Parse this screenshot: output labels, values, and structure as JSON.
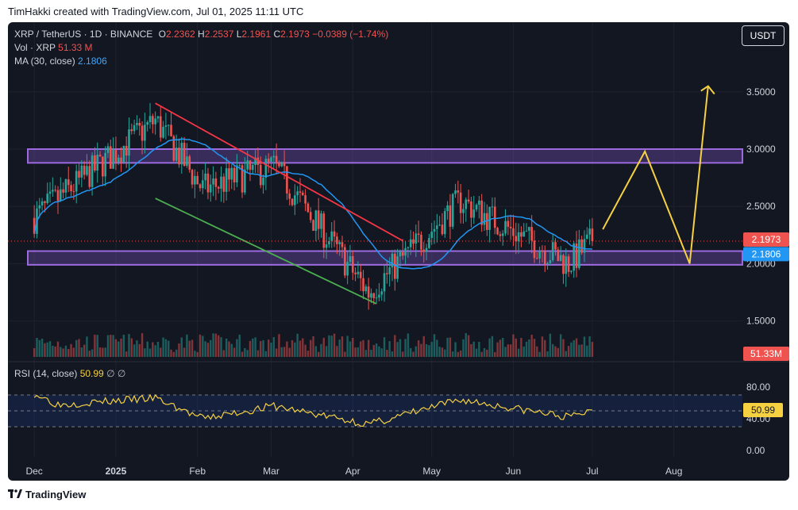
{
  "credit": "TimHakki created with TradingView.com, Jul 01, 2025 11:11 UTC",
  "legend": {
    "symbol": "XRP / TetherUS · 1D · BINANCE",
    "o_label": "O",
    "o": "2.2362",
    "h_label": "H",
    "h": "2.2537",
    "l_label": "L",
    "l": "2.1961",
    "c_label": "C",
    "c": "2.1973",
    "change": "−0.0389 (−1.74%)",
    "vol_label": "Vol · XRP",
    "vol": "51.33 M",
    "ma_label": "MA (30, close)",
    "ma": "2.1806",
    "rsi_label": "RSI (14, close)",
    "rsi": "50.99",
    "rsi_extra": "∅  ∅"
  },
  "currency_button": "USDT",
  "branding": "TradingView",
  "colors": {
    "background": "#131722",
    "up": "#26a69a",
    "down": "#ef5350",
    "ma": "#2196f3",
    "zone": "#7e57c2",
    "resistance_line": "#f23645",
    "support_line": "#4caf50",
    "projection": "#f5d142",
    "rsi": "#f5d142"
  },
  "chart_data": [
    {
      "type": "candlestick",
      "symbol": "XRP / TetherUS",
      "interval": "1D",
      "x_ticks": [
        "Dec",
        "2025",
        "Feb",
        "Mar",
        "Apr",
        "May",
        "Jun",
        "Jul",
        "Aug"
      ],
      "y_ticks": [
        "1.5000",
        "2.0000",
        "2.5000",
        "3.0000",
        "3.5000"
      ],
      "ylim": [
        1.2,
        3.9
      ],
      "price_labels": {
        "last": "2.1973",
        "ma": "2.1806",
        "volume": "51.33M"
      },
      "last_close": 2.1973,
      "ma_value": 2.1806,
      "zones": [
        {
          "name": "resistance-zone",
          "low": 2.88,
          "high": 3.0
        },
        {
          "name": "support-zone",
          "low": 1.99,
          "high": 2.11
        }
      ],
      "anchors": [
        {
          "date": "2024-12-01",
          "price": 2.4
        },
        {
          "date": "2025-01-16",
          "price": 3.25
        },
        {
          "date": "2025-02-03",
          "price": 2.65
        },
        {
          "date": "2025-03-02",
          "price": 2.85
        },
        {
          "date": "2025-04-07",
          "price": 1.75
        },
        {
          "date": "2025-05-12",
          "price": 2.55
        },
        {
          "date": "2025-06-22",
          "price": 2.0
        },
        {
          "date": "2025-07-01",
          "price": 2.2
        }
      ],
      "trendlines": [
        {
          "name": "descending-resistance",
          "from": [
            "2025-01-16",
            3.4
          ],
          "to": [
            "2025-04-20",
            2.2
          ]
        },
        {
          "name": "descending-support",
          "from": [
            "2025-01-16",
            2.57
          ],
          "to": [
            "2025-04-10",
            1.65
          ]
        }
      ],
      "projection": [
        [
          "2025-07-05",
          2.3
        ],
        [
          "2025-07-21",
          2.98
        ],
        [
          "2025-08-07",
          2.0
        ],
        [
          "2025-08-14",
          3.55
        ]
      ]
    },
    {
      "type": "line",
      "name": "RSI (14, close)",
      "y_ticks": [
        "0.00",
        "40.00",
        "80.00"
      ],
      "ylim": [
        0,
        100
      ],
      "band": [
        30,
        70
      ],
      "last": 50.99,
      "anchors": [
        {
          "date": "2024-12-01",
          "value": 72
        },
        {
          "date": "2024-12-10",
          "value": 58
        },
        {
          "date": "2025-01-16",
          "value": 66
        },
        {
          "date": "2025-02-03",
          "value": 40
        },
        {
          "date": "2025-03-02",
          "value": 56
        },
        {
          "date": "2025-04-07",
          "value": 33
        },
        {
          "date": "2025-05-12",
          "value": 64
        },
        {
          "date": "2025-06-22",
          "value": 42
        },
        {
          "date": "2025-07-01",
          "value": 51
        }
      ]
    }
  ]
}
